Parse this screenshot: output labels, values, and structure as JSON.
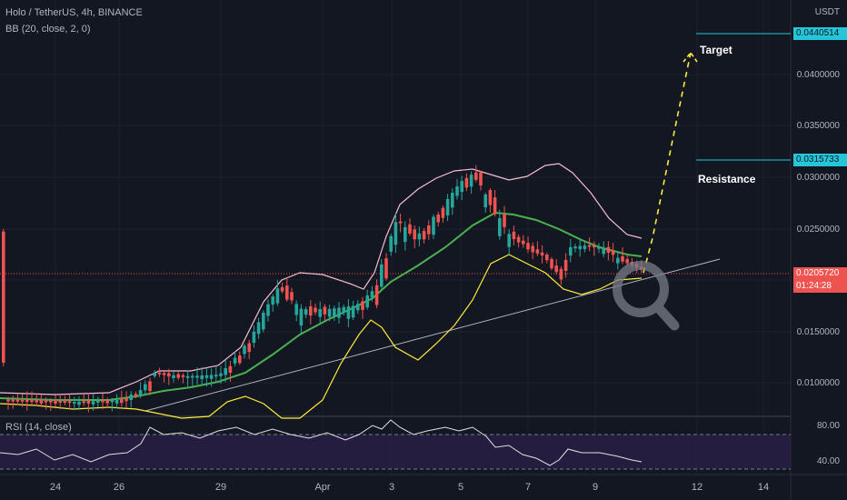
{
  "header": {
    "symbol_title": "Holo / TetherUS, 4h, BINANCE",
    "indicator_bb": "BB (20, close, 2, 0)",
    "indicator_rsi": "RSI (14, close)",
    "currency": "USDT"
  },
  "price_axis": {
    "ticks": [
      "0.0400000",
      "0.0350000",
      "0.0300000",
      "0.0250000",
      "0.0150000",
      "0.0100000"
    ]
  },
  "rsi_axis": {
    "ticks": [
      "80.00",
      "40.00"
    ]
  },
  "x_axis": {
    "ticks": [
      "24",
      "26",
      "29",
      "Apr",
      "3",
      "5",
      "7",
      "9",
      "12",
      "14"
    ]
  },
  "price_tags": {
    "target_value": "0.0440514",
    "resistance_value": "0.0315733",
    "current_price": "0.0205720",
    "countdown": "01:24:28"
  },
  "annotations": {
    "target_label": "Target",
    "resistance_label": "Resistance"
  },
  "colors": {
    "background": "#131722",
    "up_candle": "#26a69a",
    "down_candle": "#ef5350",
    "bb_basis": "#4caf50",
    "bb_upper": "#f8bbd0",
    "bb_lower": "#ffeb3b",
    "annotation_line": "#26c6da",
    "target_path": "#ffeb3b",
    "rsi_band": "#2b1f48",
    "rsi_line": "#e0e0e0"
  },
  "icons": {
    "magnifier": "magnifier-icon"
  }
}
